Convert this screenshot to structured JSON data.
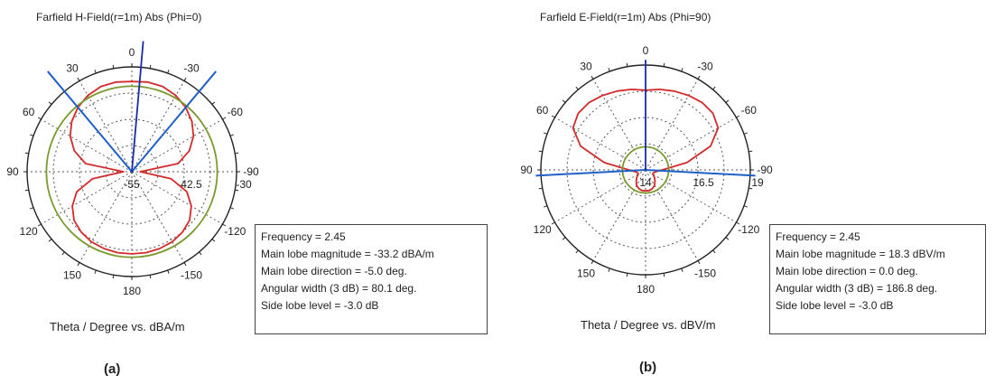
{
  "chart_data": [
    {
      "type": "polar",
      "title": "Farfield H-Field(r=1m) Abs (Phi=0)",
      "xlabel": "Theta / Degree vs. dBA/m",
      "caption": "(a)",
      "angle_labels": [
        "0",
        "30",
        "60",
        "90",
        "120",
        "150",
        "180",
        "-30",
        "-60",
        "-90",
        "-120",
        "-150"
      ],
      "radial_labels": [
        "-55",
        "-42.5",
        "-30"
      ],
      "rlim": [
        -55,
        -30
      ],
      "grid": true,
      "info_box": [
        "Frequency = 2.45",
        "Main lobe magnitude = -33.2 dBA/m",
        "Main lobe direction = -5.0 deg.",
        "Angular width (3 dB) = 80.1 deg.",
        "Side lobe level = -3.0 dB"
      ],
      "series": [
        {
          "color": "#d42a2a",
          "theta_deg": [
            0,
            10,
            20,
            30,
            40,
            50,
            60,
            70,
            80,
            90,
            100,
            110,
            120,
            130,
            140,
            150,
            160,
            170,
            180
          ],
          "values": [
            -33.5,
            -33.3,
            -33.4,
            -34.0,
            -35.0,
            -36.3,
            -38.0,
            -40.4,
            -43.8,
            -53.0,
            -45.5,
            -41.0,
            -38.6,
            -37.0,
            -36.2,
            -35.7,
            -35.5,
            -35.4,
            -35.4
          ]
        },
        {
          "color": "#7a9a2e",
          "theta_deg": [
            0,
            90,
            180
          ],
          "values": [
            -34.6,
            -34.6,
            -34.6
          ]
        }
      ],
      "markers": [
        {
          "color": "#1f5fc8",
          "theta_deg": 40
        },
        {
          "color": "#1f5fc8",
          "theta_deg": -40
        },
        {
          "color": "#1a2aa8",
          "theta_deg": -5
        }
      ]
    },
    {
      "type": "polar",
      "title": "Farfield E-Field(r=1m) Abs (Phi=90)",
      "xlabel": "Theta / Degree vs. dBV/m",
      "caption": "(b)",
      "angle_labels": [
        "0",
        "30",
        "60",
        "90",
        "120",
        "150",
        "180",
        "-30",
        "-60",
        "-90",
        "-120",
        "-150"
      ],
      "radial_labels": [
        "14",
        "16.5",
        "19"
      ],
      "rlim": [
        14,
        19
      ],
      "grid": true,
      "info_box": [
        "Frequency = 2.45",
        "Main lobe magnitude = 18.3 dBV/m",
        "Main lobe direction = 0.0 deg.",
        "Angular width (3 dB) = 186.8 deg.",
        "Side lobe level = -3.0 dB"
      ],
      "series": [
        {
          "color": "#d42a2a",
          "theta_deg": [
            0,
            10,
            20,
            30,
            40,
            50,
            60,
            70,
            80,
            90,
            100,
            110,
            120,
            130,
            140,
            150,
            160,
            170,
            180
          ],
          "values": [
            17.8,
            17.9,
            18.0,
            18.1,
            18.2,
            18.2,
            18.0,
            17.3,
            16.0,
            14.8,
            14.5,
            14.4,
            14.4,
            14.55,
            14.7,
            14.85,
            14.95,
            15.0,
            15.0
          ]
        },
        {
          "color": "#7a9a2e",
          "theta_deg": [
            0,
            90,
            180
          ],
          "values": [
            15.1,
            15.1,
            15.1
          ]
        }
      ],
      "markers": [
        {
          "color": "#1f5fc8",
          "theta_deg": 93
        },
        {
          "color": "#1f5fc8",
          "theta_deg": -93
        },
        {
          "color": "#1a2aa8",
          "theta_deg": 0
        }
      ]
    }
  ]
}
